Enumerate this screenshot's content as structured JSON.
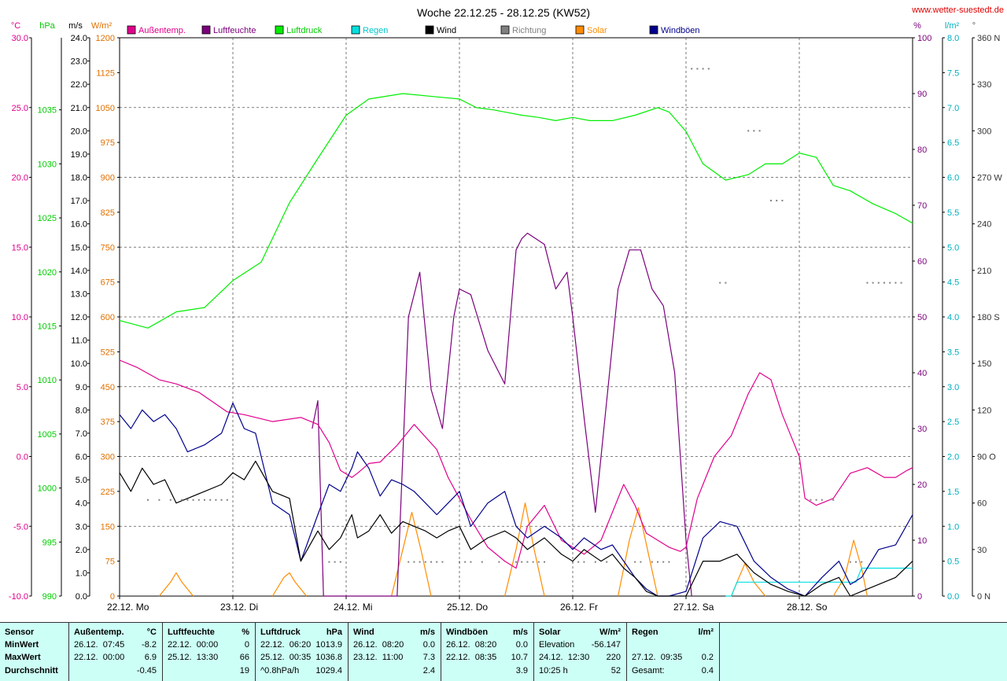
{
  "chart_data": {
    "type": "line",
    "title": "Woche 22.12.25 - 28.12.25 (KW52)",
    "source": "www.wetter-suestedt.de",
    "units": {
      "temp": "°C",
      "pressure": "hPa",
      "wind": "m/s",
      "solar": "W/m²",
      "humidity": "%",
      "rain": "l/m²"
    },
    "left_axes": {
      "temp": {
        "ticks": [
          "30.0",
          "25.0",
          "20.0",
          "15.0",
          "10.0",
          "5.0",
          "0.0",
          "-5.0",
          "-10.0"
        ],
        "range": [
          -10,
          30
        ]
      },
      "pressure": {
        "ticks": [
          "1035",
          "1030",
          "1025",
          "1020",
          "1015",
          "1010",
          "1005",
          "1000",
          "995",
          "990"
        ],
        "range": [
          990,
          1041.67
        ]
      },
      "wind": {
        "ticks": [
          "24.0",
          "23.0",
          "22.0",
          "21.0",
          "20.0",
          "19.0",
          "18.0",
          "17.0",
          "16.0",
          "15.0",
          "14.0",
          "13.0",
          "12.0",
          "11.0",
          "10.0",
          "9.0",
          "8.0",
          "7.0",
          "6.0",
          "5.0",
          "4.0",
          "3.0",
          "2.0",
          "1.0",
          "0.0"
        ],
        "range": [
          0,
          24
        ]
      },
      "solar": {
        "ticks": [
          "1200",
          "1125",
          "1050",
          "975",
          "900",
          "825",
          "750",
          "675",
          "600",
          "525",
          "450",
          "375",
          "300",
          "225",
          "150",
          "75",
          "0"
        ],
        "range": [
          0,
          1200
        ]
      }
    },
    "right_axes": {
      "humidity": {
        "ticks": [
          "100",
          "90",
          "80",
          "70",
          "60",
          "50",
          "40",
          "30",
          "20",
          "10",
          "0"
        ],
        "range": [
          0,
          100
        ]
      },
      "rain": {
        "ticks": [
          "8.0",
          "7.5",
          "7.0",
          "6.5",
          "6.0",
          "5.5",
          "5.0",
          "4.5",
          "4.0",
          "3.5",
          "3.0",
          "2.5",
          "2.0",
          "1.5",
          "1.0",
          "0.5",
          "0.0"
        ],
        "range": [
          0,
          8
        ]
      },
      "direction": {
        "ticks": [
          "360 N",
          "330",
          "300",
          "270 W",
          "240",
          "210",
          "180 S",
          "150",
          "120",
          "90 O",
          "60",
          "30",
          "0 N"
        ],
        "range": [
          0,
          360
        ]
      }
    },
    "x_days": [
      "22.12.  Mo",
      "23.12.  Di",
      "24.12.  Mi",
      "25.12.  Do",
      "26.12.  Fr",
      "27.12.  Sa",
      "28.12.  So"
    ],
    "x_range_days": [
      0,
      7
    ],
    "legend": [
      {
        "name": "Außentemp.",
        "color": "#e0008c"
      },
      {
        "name": "Luftfeuchte",
        "color": "#7b007b"
      },
      {
        "name": "Luftdruck",
        "color": "#00ee00"
      },
      {
        "name": "Regen",
        "color": "#00e0e0"
      },
      {
        "name": "Wind",
        "color": "#000000"
      },
      {
        "name": "Richtung",
        "color": "#808080"
      },
      {
        "name": "Solar",
        "color": "#ff8c00"
      },
      {
        "name": "Windböen",
        "color": "#00008c"
      }
    ],
    "series": [
      {
        "name": "Außentemp.",
        "axis": "temp",
        "color": "#e0008c",
        "x": [
          0,
          0.15,
          0.35,
          0.5,
          0.7,
          0.95,
          1.1,
          1.35,
          1.6,
          1.75,
          1.85,
          1.95,
          2.05,
          2.1,
          2.2,
          2.3,
          2.45,
          2.6,
          2.8,
          2.9,
          3.0,
          3.1,
          3.25,
          3.4,
          3.5,
          3.6,
          3.75,
          3.9,
          4.0,
          4.1,
          4.25,
          4.45,
          4.55,
          4.65,
          4.75,
          4.85,
          4.95,
          5.0,
          5.1,
          5.25,
          5.4,
          5.55,
          5.65,
          5.75,
          5.85,
          6.0,
          6.05,
          6.15,
          6.3,
          6.45,
          6.6,
          6.75,
          6.85,
          6.95,
          7.0
        ],
        "y": [
          6.9,
          6.4,
          5.5,
          5.2,
          4.6,
          3.2,
          3.0,
          2.5,
          2.8,
          2.3,
          1.0,
          -1.0,
          -1.5,
          -1.2,
          -0.5,
          -0.4,
          0.8,
          2.3,
          0.5,
          -1.5,
          -3.0,
          -4.5,
          -6.5,
          -7.5,
          -8.0,
          -5.0,
          -3.5,
          -6.0,
          -6.5,
          -7.0,
          -6.0,
          -2.0,
          -3.5,
          -5.5,
          -6.0,
          -6.5,
          -6.8,
          -6.5,
          -3.0,
          0.0,
          1.5,
          4.5,
          6.0,
          5.5,
          3.0,
          0.0,
          -3.0,
          -3.5,
          -3.0,
          -1.2,
          -0.8,
          -1.5,
          -1.5,
          -1.0,
          -0.8
        ]
      },
      {
        "name": "Luftfeuchte",
        "axis": "humidity",
        "color": "#7b007b",
        "x": [
          1.7,
          1.75,
          1.8,
          1.85,
          1.9,
          1.95,
          2.0,
          2.45,
          2.55,
          2.65,
          2.75,
          2.85,
          2.95,
          3.0,
          3.1,
          3.25,
          3.4,
          3.5,
          3.55,
          3.6,
          3.75,
          3.85,
          3.95,
          4.0,
          4.1,
          4.2,
          4.3,
          4.4,
          4.5,
          4.6,
          4.7,
          4.8,
          4.9,
          5.0,
          5.05
        ],
        "y": [
          30,
          35,
          0,
          0,
          0,
          0,
          0,
          0,
          50,
          58,
          37,
          30,
          50,
          55,
          54,
          44,
          38,
          62,
          64,
          65,
          63,
          55,
          58,
          50,
          32,
          15,
          35,
          55,
          62,
          62,
          55,
          52,
          40,
          10,
          0
        ]
      },
      {
        "name": "Luftdruck",
        "axis": "pressure",
        "color": "#00ee00",
        "x": [
          0,
          0.25,
          0.5,
          0.75,
          1.0,
          1.25,
          1.5,
          1.75,
          2.0,
          2.2,
          2.5,
          2.8,
          3.0,
          3.15,
          3.3,
          3.55,
          3.7,
          3.85,
          4.0,
          4.15,
          4.35,
          4.55,
          4.75,
          4.85,
          5.0,
          5.15,
          5.35,
          5.55,
          5.7,
          5.85,
          6.0,
          6.15,
          6.3,
          6.45,
          6.65,
          6.85,
          7.0
        ],
        "y": [
          1015.5,
          1014.8,
          1016.3,
          1016.7,
          1019.2,
          1020.9,
          1026.4,
          1030.5,
          1034.5,
          1036.0,
          1036.5,
          1036.2,
          1036.0,
          1035.2,
          1035.0,
          1034.5,
          1034.3,
          1034.0,
          1034.3,
          1034.0,
          1034.0,
          1034.5,
          1035.2,
          1034.8,
          1033.0,
          1030.0,
          1028.5,
          1029.0,
          1030.0,
          1030.0,
          1031.0,
          1030.6,
          1028.0,
          1027.5,
          1026.3,
          1025.4,
          1024.5
        ]
      },
      {
        "name": "Regen",
        "axis": "rain",
        "color": "#00e0e0",
        "x": [
          5.35,
          5.4,
          5.45,
          6.45,
          6.5,
          6.55,
          7.0
        ],
        "y": [
          0,
          0.0,
          0.2,
          0.2,
          0.2,
          0.4,
          0.4
        ]
      },
      {
        "name": "Wind",
        "axis": "wind",
        "color": "#000000",
        "x": [
          0,
          0.1,
          0.2,
          0.3,
          0.4,
          0.5,
          0.6,
          0.75,
          0.9,
          1.0,
          1.1,
          1.2,
          1.35,
          1.5,
          1.6,
          1.75,
          1.85,
          1.95,
          2.05,
          2.1,
          2.2,
          2.3,
          2.4,
          2.5,
          2.6,
          2.7,
          2.8,
          2.9,
          3.0,
          3.1,
          3.25,
          3.4,
          3.5,
          3.6,
          3.75,
          3.9,
          4.0,
          4.1,
          4.25,
          4.35,
          4.45,
          4.55,
          4.65,
          4.75,
          4.85,
          5.0,
          5.15,
          5.3,
          5.45,
          5.6,
          5.75,
          5.9,
          6.05,
          6.2,
          6.35,
          6.45,
          6.55,
          6.7,
          6.85,
          7.0
        ],
        "y": [
          5.3,
          4.5,
          5.5,
          4.8,
          5.0,
          4.0,
          4.2,
          4.5,
          4.8,
          5.3,
          5.0,
          5.8,
          4.5,
          4.2,
          1.5,
          2.8,
          2.0,
          2.5,
          3.5,
          2.5,
          2.8,
          3.5,
          2.7,
          3.2,
          3.0,
          2.8,
          2.5,
          2.8,
          3.0,
          2.0,
          2.5,
          2.8,
          2.5,
          2.0,
          2.5,
          1.8,
          1.5,
          2.0,
          1.5,
          1.8,
          1.2,
          0.8,
          0.2,
          0.0,
          0.0,
          0.0,
          1.5,
          1.5,
          1.8,
          1.0,
          0.5,
          0.2,
          0.0,
          0.5,
          0.8,
          0.0,
          0.2,
          0.5,
          0.8,
          1.5
        ]
      },
      {
        "name": "Windböen",
        "axis": "wind",
        "color": "#00008c",
        "x": [
          0,
          0.1,
          0.2,
          0.3,
          0.4,
          0.5,
          0.6,
          0.75,
          0.9,
          1.0,
          1.1,
          1.2,
          1.35,
          1.5,
          1.6,
          1.75,
          1.85,
          1.95,
          2.05,
          2.1,
          2.2,
          2.3,
          2.4,
          2.5,
          2.6,
          2.7,
          2.8,
          2.9,
          3.0,
          3.1,
          3.25,
          3.4,
          3.5,
          3.6,
          3.75,
          3.9,
          4.0,
          4.1,
          4.25,
          4.35,
          4.45,
          4.55,
          4.65,
          4.75,
          4.85,
          5.0,
          5.15,
          5.3,
          5.45,
          5.6,
          5.75,
          5.9,
          6.05,
          6.2,
          6.35,
          6.45,
          6.55,
          6.7,
          6.85,
          7.0
        ],
        "y": [
          7.8,
          7.2,
          8.0,
          7.5,
          7.8,
          7.2,
          6.2,
          6.5,
          7.0,
          8.3,
          7.2,
          7.0,
          4.0,
          3.5,
          1.5,
          3.5,
          4.8,
          4.5,
          5.5,
          6.2,
          5.5,
          4.3,
          5.0,
          4.8,
          4.5,
          4.0,
          3.5,
          4.0,
          4.5,
          3.0,
          4.0,
          4.5,
          3.0,
          2.5,
          3.0,
          2.5,
          2.0,
          2.5,
          2.0,
          2.2,
          1.5,
          0.8,
          0.3,
          0.0,
          0.0,
          0.2,
          2.5,
          3.2,
          3.0,
          1.5,
          0.8,
          0.3,
          0.0,
          0.8,
          1.5,
          0.5,
          0.8,
          2.0,
          2.2,
          3.5
        ]
      },
      {
        "name": "Solar",
        "axis": "solar",
        "color": "#ff8c00",
        "segments": [
          {
            "x": [
              0.35,
              0.45,
              0.5,
              0.55,
              0.65
            ],
            "y": [
              0,
              30,
              50,
              30,
              0
            ]
          },
          {
            "x": [
              1.35,
              1.45,
              1.5,
              1.55,
              1.65
            ],
            "y": [
              0,
              40,
              50,
              30,
              0
            ]
          },
          {
            "x": [
              2.4,
              2.5,
              2.58,
              2.66,
              2.75
            ],
            "y": [
              0,
              100,
              180,
              100,
              0
            ]
          },
          {
            "x": [
              3.4,
              3.5,
              3.58,
              3.66,
              3.75
            ],
            "y": [
              0,
              100,
              200,
              100,
              0
            ]
          },
          {
            "x": [
              4.4,
              4.5,
              4.58,
              4.66,
              4.75
            ],
            "y": [
              0,
              120,
              190,
              100,
              0
            ]
          },
          {
            "x": [
              5.4,
              5.45,
              5.52,
              5.6,
              5.7
            ],
            "y": [
              0,
              30,
              70,
              30,
              0
            ]
          },
          {
            "x": [
              6.3,
              6.4,
              6.48,
              6.55,
              6.6
            ],
            "y": [
              0,
              40,
              120,
              60,
              0
            ]
          }
        ]
      }
    ],
    "direction_points": {
      "axis": "direction",
      "color": "#808080",
      "x": [
        0.25,
        0.35,
        0.45,
        0.55,
        0.6,
        0.65,
        0.7,
        0.75,
        0.8,
        0.85,
        0.9,
        0.95,
        1.85,
        1.9,
        1.95,
        2.55,
        2.6,
        2.65,
        2.7,
        2.75,
        2.8,
        2.85,
        3.0,
        3.05,
        3.1,
        3.2,
        3.35,
        3.5,
        3.55,
        3.6,
        3.65,
        3.7,
        3.75,
        4.0,
        4.05,
        4.1,
        4.2,
        4.3,
        4.55,
        4.6,
        4.7,
        4.75,
        4.8,
        4.85,
        5.05,
        5.1,
        5.15,
        5.2,
        5.3,
        5.35,
        5.55,
        5.6,
        5.65,
        5.75,
        5.8,
        5.85,
        6.1,
        6.15,
        6.2,
        6.3,
        6.45,
        6.5,
        6.55,
        6.6,
        6.65,
        6.7,
        6.75,
        6.8,
        6.85,
        6.9
      ],
      "y": [
        62,
        62,
        62,
        62,
        62,
        62,
        62,
        62,
        62,
        62,
        62,
        62,
        22,
        22,
        22,
        22,
        22,
        22,
        22,
        22,
        22,
        22,
        22,
        22,
        22,
        22,
        22,
        22,
        22,
        22,
        22,
        22,
        22,
        22,
        22,
        22,
        22,
        22,
        22,
        22,
        22,
        22,
        22,
        22,
        340,
        340,
        340,
        340,
        202,
        202,
        300,
        300,
        300,
        255,
        255,
        255,
        62,
        62,
        62,
        62,
        22,
        22,
        22,
        202,
        202,
        202,
        202,
        202,
        202,
        202
      ]
    }
  },
  "stats": {
    "headers": [
      {
        "label": "Sensor",
        "unit": ""
      },
      {
        "label": "Außentemp.",
        "unit": "°C"
      },
      {
        "label": "Luftfeuchte",
        "unit": "%"
      },
      {
        "label": "Luftdruck",
        "unit": "hPa"
      },
      {
        "label": "Wind",
        "unit": "m/s"
      },
      {
        "label": "Windböen",
        "unit": "m/s"
      },
      {
        "label": "Solar",
        "unit": "W/m²"
      },
      {
        "label": "Regen",
        "unit": "l/m²"
      }
    ],
    "row_labels": [
      "MinWert",
      "MaxWert",
      "Durchschnitt"
    ],
    "columns": [
      {
        "rows": [
          [
            "26.12.  07:45",
            "-8.2"
          ],
          [
            "22.12.  00:00",
            "6.9"
          ],
          [
            "",
            "-0.45"
          ]
        ]
      },
      {
        "rows": [
          [
            "22.12.  00:00",
            "0"
          ],
          [
            "25.12.  13:30",
            "66"
          ],
          [
            "",
            "19"
          ]
        ]
      },
      {
        "rows": [
          [
            "22.12.  06:20",
            "1013.9"
          ],
          [
            "25.12.  00:35",
            "1036.8"
          ],
          [
            "^0.8hPa/h",
            "1029.4"
          ]
        ]
      },
      {
        "rows": [
          [
            "26.12.  08:20",
            "0.0"
          ],
          [
            "23.12.  11:00",
            "7.3"
          ],
          [
            "",
            "2.4"
          ]
        ]
      },
      {
        "rows": [
          [
            "26.12.  08:20",
            "0.0"
          ],
          [
            "22.12.  08:35",
            "10.7"
          ],
          [
            "",
            "3.9"
          ]
        ]
      },
      {
        "rows": [
          [
            "Elevation",
            "-56.147"
          ],
          [
            "24.12.  12:30",
            "220"
          ],
          [
            "10:25 h",
            "52"
          ]
        ]
      },
      {
        "rows": [
          [
            "",
            ""
          ],
          [
            "27.12.  09:35",
            "0.2"
          ],
          [
            "Gesamt:",
            "0.4"
          ]
        ]
      }
    ]
  }
}
